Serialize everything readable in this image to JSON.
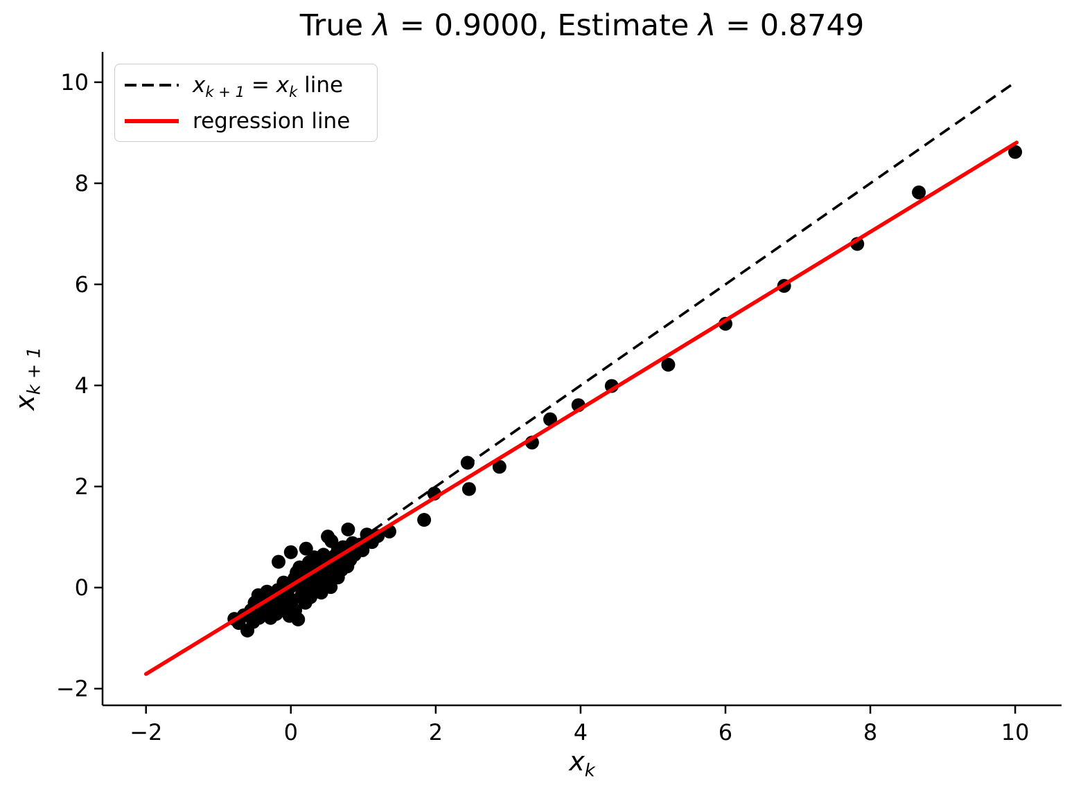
{
  "title": {
    "part1": "True ",
    "lambda1": "λ",
    "part2": " = 0.9000, Estimate ",
    "lambda2": "λ",
    "part3": " = 0.8749"
  },
  "axes": {
    "x_label_base": "x",
    "x_label_sub": "k",
    "y_label_base": "x",
    "y_label_sub": "k + 1"
  },
  "legend": {
    "items": [
      {
        "name": "identity-line",
        "style": "dashed",
        "color": "#000000",
        "part_x1": "x",
        "part_sub1": "k + 1",
        "part_eq": " = ",
        "part_x2": "x",
        "part_sub2": "k",
        "part_suffix": " line"
      },
      {
        "name": "regression-line",
        "style": "solid",
        "color": "#ff0000",
        "label": "regression line"
      }
    ]
  },
  "chart_data": {
    "type": "scatter",
    "title": "True λ = 0.9000, Estimate λ = 0.8749",
    "xlabel": "x_k",
    "ylabel": "x_{k+1}",
    "xlim": [
      -2.6,
      10.64
    ],
    "ylim": [
      -2.33,
      10.6
    ],
    "xticks": [
      -2,
      0,
      2,
      4,
      6,
      8,
      10
    ],
    "yticks": [
      -2,
      0,
      2,
      4,
      6,
      8,
      10
    ],
    "grid": false,
    "legend_position": "upper left",
    "point_color": "#000000",
    "point_radius_px": 10,
    "true_lambda": 0.9,
    "estimated_lambda": 0.8749,
    "identity_line": {
      "label": "x_{k+1} = x_k line",
      "color": "#000000",
      "style": "dashed",
      "x0": -0.78,
      "x1": 10.0
    },
    "regression_line": {
      "label": "regression line",
      "color": "#ff0000",
      "style": "solid",
      "slope": 0.8749,
      "intercept": 0.04,
      "x0": -2.0,
      "x1": 10.02
    },
    "points": [
      [
        10.0,
        8.62
      ],
      [
        8.67,
        7.82
      ],
      [
        7.82,
        6.8
      ],
      [
        6.81,
        5.97
      ],
      [
        6.0,
        5.22
      ],
      [
        5.21,
        4.41
      ],
      [
        4.43,
        3.99
      ],
      [
        3.97,
        3.61
      ],
      [
        3.58,
        3.33
      ],
      [
        3.33,
        2.87
      ],
      [
        2.88,
        2.39
      ],
      [
        2.44,
        2.47
      ],
      [
        2.46,
        1.95
      ],
      [
        1.98,
        1.86
      ],
      [
        1.84,
        1.34
      ],
      [
        1.36,
        1.11
      ],
      [
        1.12,
        0.9
      ],
      [
        0.99,
        0.74
      ],
      [
        0.79,
        1.15
      ],
      [
        -0.78,
        -0.62
      ],
      [
        -0.72,
        -0.7
      ],
      [
        -0.65,
        -0.55
      ],
      [
        -0.6,
        -0.85
      ],
      [
        -0.55,
        -0.45
      ],
      [
        -0.52,
        -0.68
      ],
      [
        -0.5,
        -0.3
      ],
      [
        -0.48,
        -0.55
      ],
      [
        -0.45,
        -0.15
      ],
      [
        -0.44,
        -0.6
      ],
      [
        -0.4,
        -0.42
      ],
      [
        -0.38,
        -0.2
      ],
      [
        -0.35,
        -0.52
      ],
      [
        -0.33,
        -0.08
      ],
      [
        -0.3,
        -0.35
      ],
      [
        -0.28,
        -0.6
      ],
      [
        -0.25,
        -0.18
      ],
      [
        -0.22,
        -0.45
      ],
      [
        -0.2,
        -0.52
      ],
      [
        -0.18,
        -0.05
      ],
      [
        -0.17,
        0.51
      ],
      [
        -0.15,
        -0.3
      ],
      [
        -0.12,
        -0.22
      ],
      [
        -0.1,
        0.1
      ],
      [
        -0.08,
        -0.4
      ],
      [
        -0.05,
        -0.12
      ],
      [
        -0.02,
        -0.56
      ],
      [
        0.0,
        0.7
      ],
      [
        0.0,
        0.02
      ],
      [
        0.02,
        -0.25
      ],
      [
        0.05,
        0.18
      ],
      [
        0.06,
        -0.45
      ],
      [
        0.08,
        0.3
      ],
      [
        0.1,
        -0.63
      ],
      [
        0.1,
        0.05
      ],
      [
        0.12,
        0.4
      ],
      [
        0.15,
        -0.15
      ],
      [
        0.15,
        0.22
      ],
      [
        0.18,
        0.08
      ],
      [
        0.2,
        -0.3
      ],
      [
        0.21,
        0.77
      ],
      [
        0.22,
        0.35
      ],
      [
        0.25,
        0.02
      ],
      [
        0.25,
        0.5
      ],
      [
        0.27,
        -0.19
      ],
      [
        0.28,
        0.2
      ],
      [
        0.3,
        0.42
      ],
      [
        0.3,
        -0.05
      ],
      [
        0.32,
        0.6
      ],
      [
        0.35,
        0.12
      ],
      [
        0.35,
        0.35
      ],
      [
        0.38,
        0.05
      ],
      [
        0.4,
        0.55
      ],
      [
        0.4,
        0.25
      ],
      [
        0.42,
        -0.1
      ],
      [
        0.45,
        0.4
      ],
      [
        0.45,
        0.65
      ],
      [
        0.48,
        0.15
      ],
      [
        0.5,
        0.3
      ],
      [
        0.51,
        1.01
      ],
      [
        0.52,
        0.55
      ],
      [
        0.55,
        0.01
      ],
      [
        0.55,
        0.45
      ],
      [
        0.56,
        0.92
      ],
      [
        0.58,
        0.3
      ],
      [
        0.6,
        0.62
      ],
      [
        0.62,
        0.45
      ],
      [
        0.65,
        0.2
      ],
      [
        0.65,
        0.75
      ],
      [
        0.68,
        0.5
      ],
      [
        0.7,
        0.35
      ],
      [
        0.72,
        0.8
      ],
      [
        0.75,
        0.55
      ],
      [
        0.78,
        0.42
      ],
      [
        0.8,
        0.7
      ],
      [
        0.82,
        0.55
      ],
      [
        0.85,
        0.88
      ],
      [
        0.88,
        0.65
      ],
      [
        0.9,
        0.78
      ],
      [
        0.95,
        0.85
      ],
      [
        1.05,
        1.05
      ],
      [
        1.2,
        1.02
      ]
    ]
  }
}
